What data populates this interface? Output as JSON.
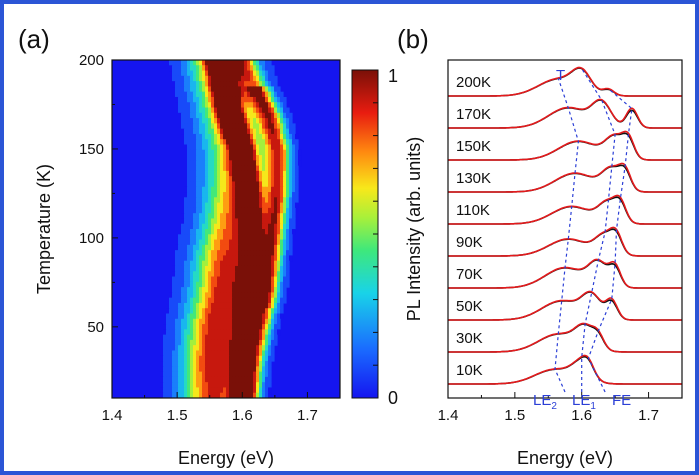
{
  "chart_data": [
    {
      "panel": "(a)",
      "type": "heatmap",
      "xlabel": "Energy (eV)",
      "ylabel": "Temperature (K)",
      "xlim": [
        1.4,
        1.75
      ],
      "ylim": [
        10,
        200
      ],
      "xticks": [
        "1.4",
        "1.5",
        "1.6",
        "1.7"
      ],
      "yticks": [
        "50",
        "100",
        "150",
        "200"
      ],
      "colorbar": {
        "min": 0,
        "max": 1,
        "labels": [
          "0",
          "1"
        ]
      },
      "peak_tracks": {
        "temperatures": [
          10,
          30,
          50,
          70,
          90,
          110,
          130,
          150,
          170,
          200
        ],
        "LE2_energy": [
          1.555,
          1.555,
          1.56,
          1.57,
          1.575,
          1.585,
          1.59,
          1.59,
          1.58,
          1.565
        ],
        "LE1_energy": [
          1.6,
          1.6,
          1.605,
          1.61,
          1.615,
          1.615,
          1.61,
          1.6,
          1.58,
          1.565
        ],
        "FE_energy": [
          1.615,
          1.62,
          1.63,
          1.64,
          1.645,
          1.65,
          1.655,
          1.655,
          1.64,
          1.6
        ]
      }
    },
    {
      "panel": "(b)",
      "type": "line",
      "xlabel": "Energy (eV)",
      "ylabel": "PL Intensity (arb. units)",
      "xlim": [
        1.4,
        1.75
      ],
      "xticks": [
        "1.4",
        "1.5",
        "1.6",
        "1.7"
      ],
      "series_colors": {
        "measured": "#111111",
        "fit": "#e41a1c",
        "guide": "#2b3fd6"
      },
      "spectra": [
        {
          "label": "10K",
          "T": 10,
          "le2": 1.56,
          "le1": 1.6,
          "fe": 1.61
        },
        {
          "label": "30K",
          "T": 30,
          "le2": 1.565,
          "le1": 1.605,
          "fe": 1.625
        },
        {
          "label": "50K",
          "T": 50,
          "le2": 1.57,
          "le1": 1.615,
          "fe": 1.645
        },
        {
          "label": "70K",
          "T": 70,
          "le2": 1.575,
          "le1": 1.625,
          "fe": 1.65
        },
        {
          "label": "90K",
          "T": 90,
          "le2": 1.58,
          "le1": 1.635,
          "fe": 1.652
        },
        {
          "label": "110K",
          "T": 110,
          "le2": 1.585,
          "le1": 1.64,
          "fe": 1.658
        },
        {
          "label": "130K",
          "T": 130,
          "le2": 1.59,
          "le1": 1.645,
          "fe": 1.665
        },
        {
          "label": "150K",
          "T": 150,
          "le2": 1.595,
          "le1": 1.65,
          "fe": 1.67
        },
        {
          "label": "170K",
          "T": 170,
          "le2": 1.58,
          "le1": 1.63,
          "fe": 1.675
        },
        {
          "label": "200K",
          "T": 200,
          "le2": 1.565,
          "le1": 1.6,
          "fe": 1.64
        }
      ],
      "annotations": {
        "T": "T",
        "LE2": "LE",
        "LE2_sub": "2",
        "LE1": "LE",
        "LE1_sub": "1",
        "FE": "FE"
      }
    }
  ]
}
